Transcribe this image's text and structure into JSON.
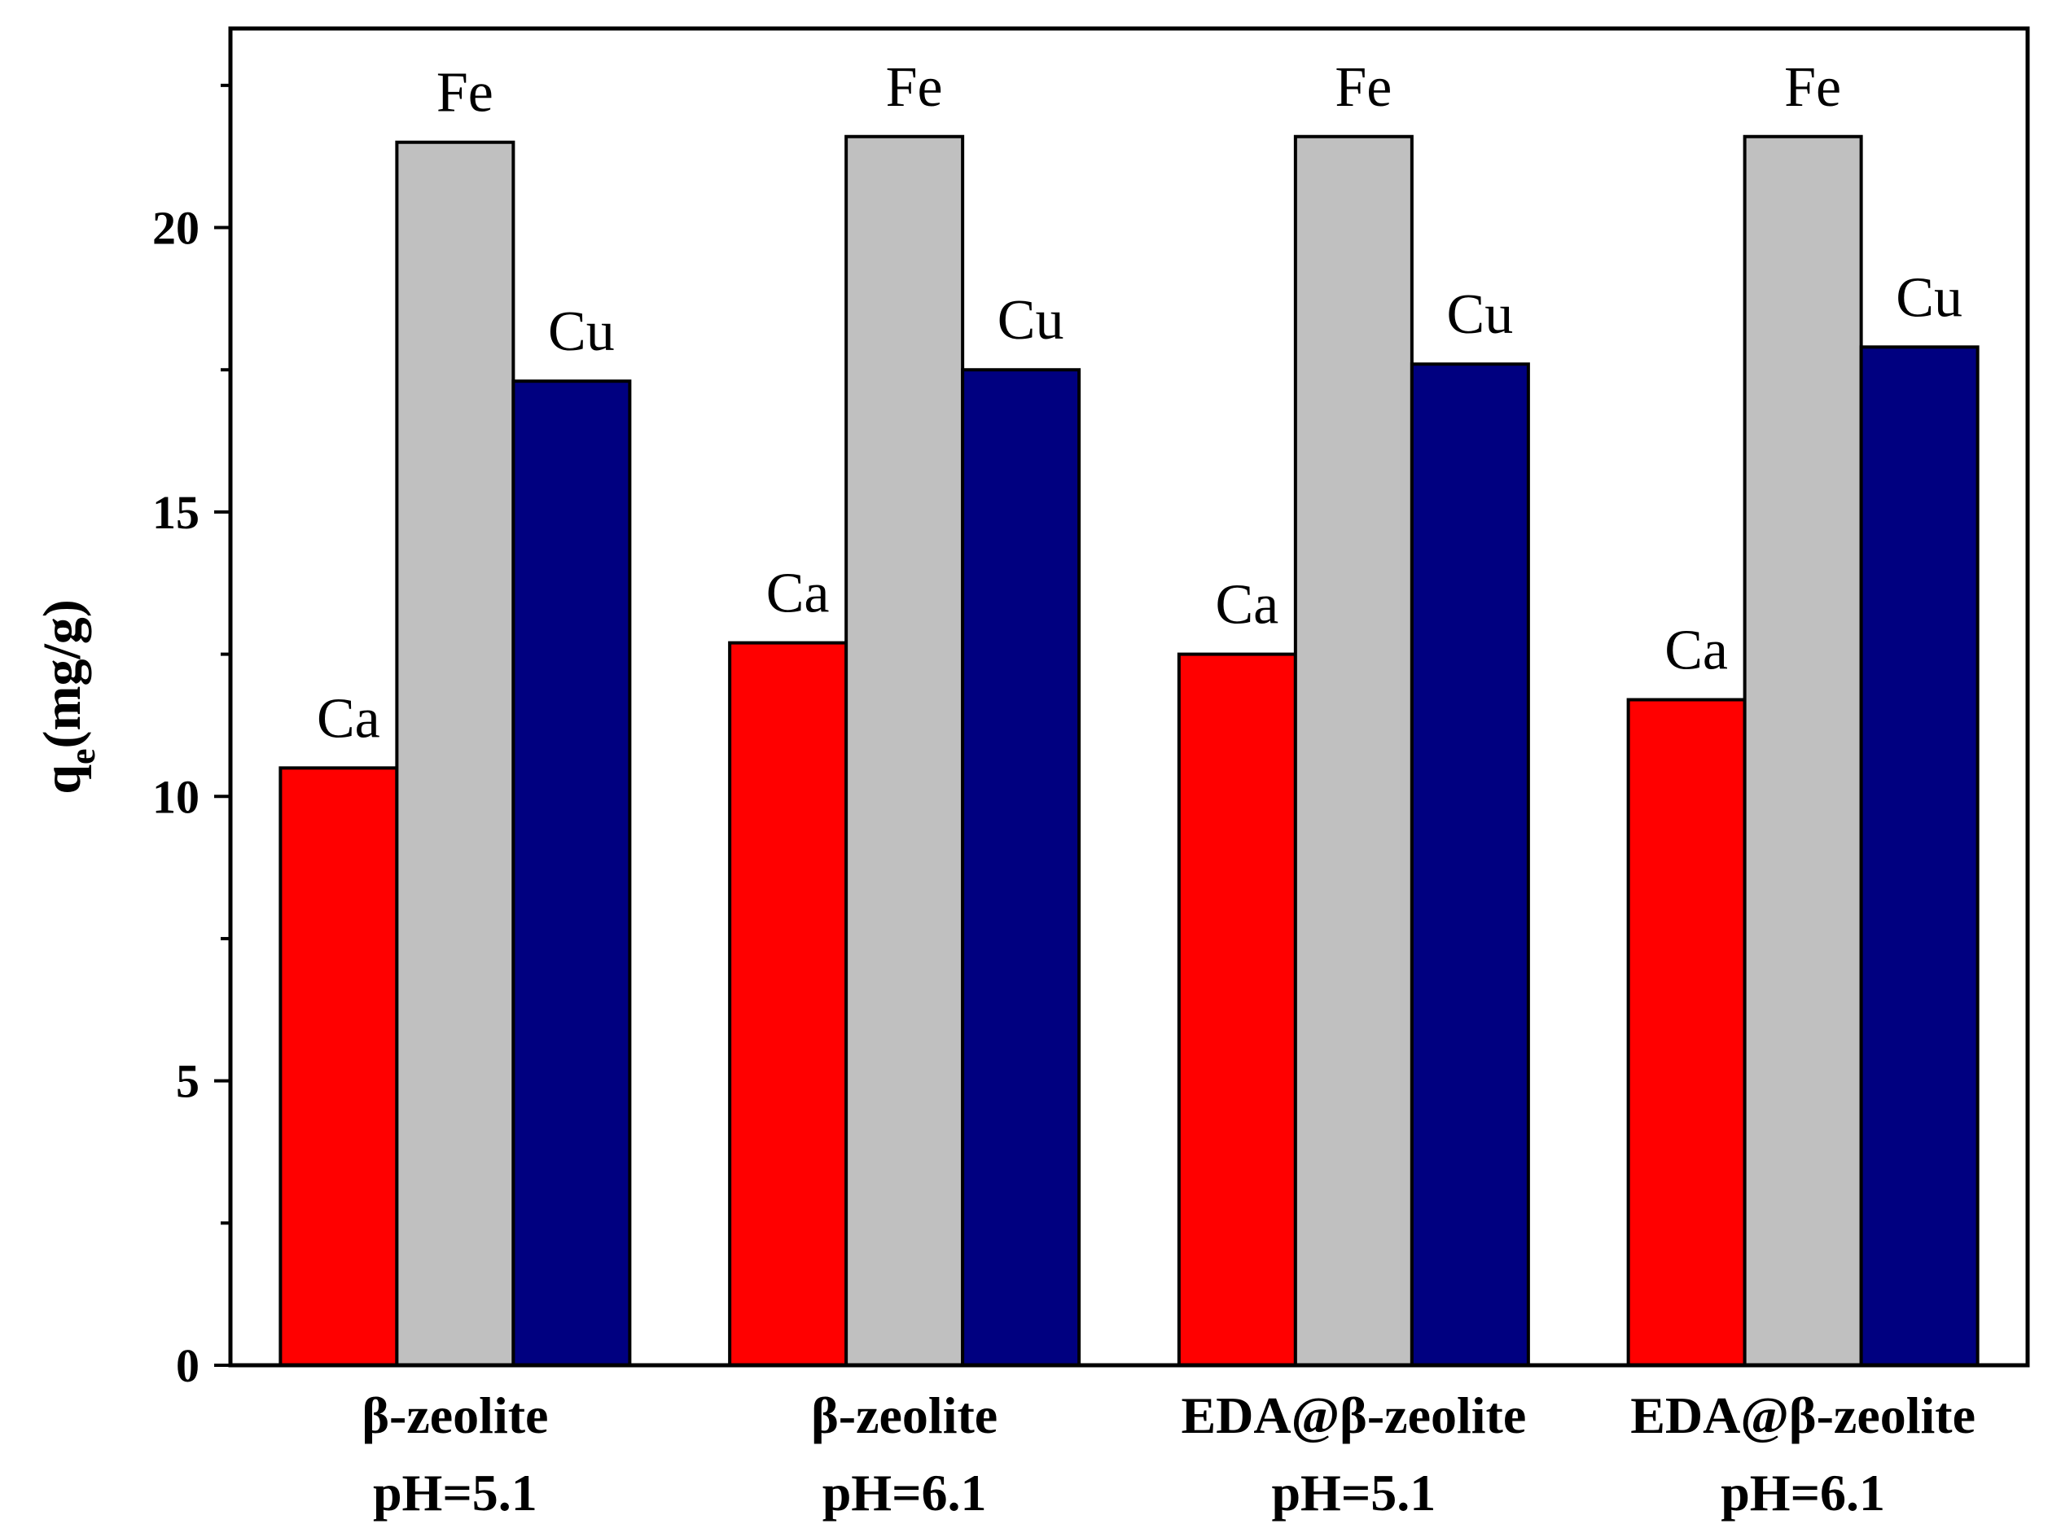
{
  "chart_data": {
    "type": "bar",
    "title": "",
    "ylabel": {
      "main": "q",
      "sub": "e",
      "unit": "(mg/g)"
    },
    "xlabel": "",
    "ylim": [
      0,
      23.5
    ],
    "yticks": [
      0,
      5,
      10,
      15,
      20
    ],
    "categories": [
      {
        "line1": "β-zeolite",
        "line2": "pH=5.1"
      },
      {
        "line1": "β-zeolite",
        "line2": "pH=6.1"
      },
      {
        "line1": "EDA@β-zeolite",
        "line2": "pH=5.1"
      },
      {
        "line1": "EDA@β-zeolite",
        "line2": "pH=6.1"
      }
    ],
    "series": [
      {
        "name": "Ca",
        "color": "#ff0000",
        "values": [
          10.5,
          12.7,
          12.5,
          11.7
        ]
      },
      {
        "name": "Fe",
        "color": "#c0c0c0",
        "values": [
          21.5,
          21.6,
          21.6,
          21.6
        ]
      },
      {
        "name": "Cu",
        "color": "#000080",
        "values": [
          17.3,
          17.5,
          17.6,
          17.9
        ]
      }
    ],
    "grid": false,
    "legend": "none"
  }
}
